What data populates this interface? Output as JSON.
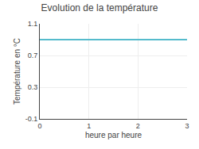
{
  "chart_data": {
    "type": "line",
    "title": "Evolution de la température",
    "xlabel": "heure par heure",
    "ylabel": "Température en °C",
    "x": [
      0,
      3
    ],
    "values": [
      0.9,
      0.9
    ],
    "color": "#55bbcc",
    "xlim": [
      0,
      3
    ],
    "xticks": [
      0,
      1,
      2,
      3
    ],
    "ylim": [
      -0.1,
      1.1
    ],
    "yticks": [
      -0.1,
      0.3,
      0.7,
      1.1
    ],
    "grid": true
  }
}
